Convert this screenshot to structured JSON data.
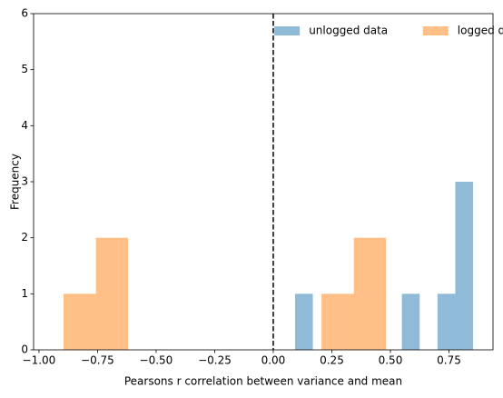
{
  "chart_data": {
    "type": "histogram",
    "xlabel": "Pearsons r correlation between variance and mean",
    "ylabel": "Frequency",
    "series": [
      {
        "name": "unlogged data",
        "color": "#1f77b4",
        "opacity": 0.5,
        "bins": [
          0.093,
          0.169,
          0.245,
          0.321,
          0.397,
          0.473,
          0.549,
          0.625,
          0.701,
          0.777,
          0.853
        ],
        "values": [
          1,
          0,
          0,
          0,
          0,
          0,
          1,
          0,
          1,
          3
        ]
      },
      {
        "name": "logged data",
        "color": "#ff7f0e",
        "opacity": 0.5,
        "bins": [
          -0.895,
          -0.757,
          -0.62,
          -0.482,
          -0.345,
          -0.207,
          -0.069,
          0.068,
          0.206,
          0.344,
          0.481
        ],
        "values": [
          1,
          2,
          0,
          0,
          0,
          0,
          0,
          0,
          1,
          2
        ]
      }
    ],
    "vline": 0,
    "xlim": [
      -1.023,
      0.938
    ],
    "xticks": [
      {
        "value": -1,
        "label": "−1.00"
      },
      {
        "value": -0.75,
        "label": "−0.75"
      },
      {
        "value": -0.5,
        "label": "−0.50"
      },
      {
        "value": -0.25,
        "label": "−0.25"
      },
      {
        "value": 0,
        "label": "0.00"
      },
      {
        "value": 0.25,
        "label": "0.25"
      },
      {
        "value": 0.5,
        "label": "0.50"
      },
      {
        "value": 0.75,
        "label": "0.75"
      }
    ],
    "ylim": [
      0,
      6
    ],
    "yticks": [
      0,
      1,
      2,
      3,
      4,
      5,
      6
    ],
    "legend": "upper right"
  }
}
